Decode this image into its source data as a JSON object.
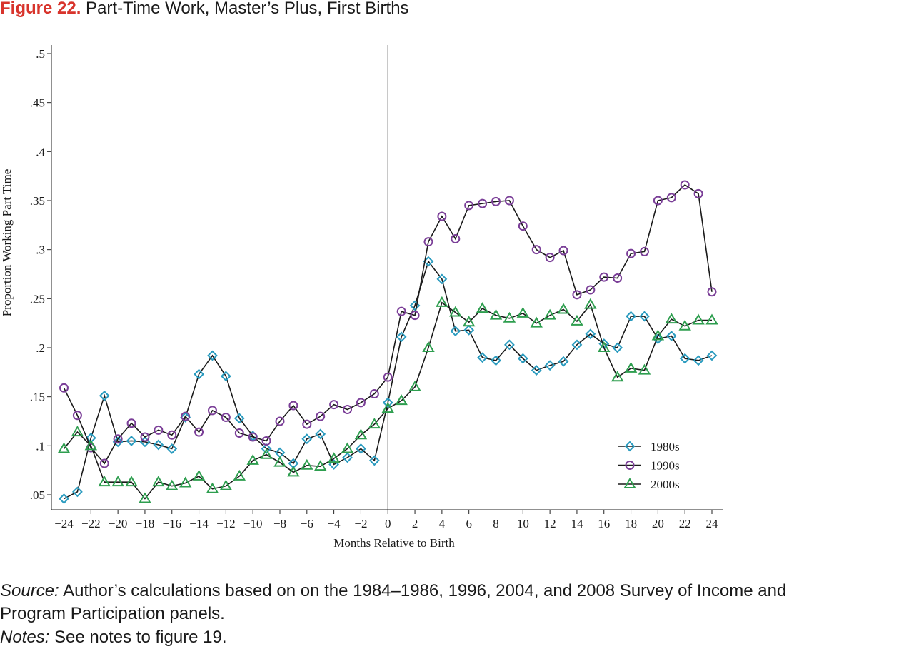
{
  "figure": {
    "number": "Figure 22.",
    "title": "Part-Time Work, Master’s Plus, First Births"
  },
  "footer": {
    "source_label": "Source:",
    "source_text": "Author’s calculations based on on the 1984–1986, 1996, 2004, and 2008 Survey of Income and",
    "source_text_2": "Program Participation panels.",
    "notes_label": "Notes:",
    "notes_text": "See notes to figure 19."
  },
  "chart_data": {
    "type": "line",
    "title": "",
    "xlabel": "Months Relative to Birth",
    "ylabel": "Proportion Working Part Time",
    "xlim": [
      -25,
      25
    ],
    "ylim": [
      0.04,
      0.51
    ],
    "x_ticks": [
      -24,
      -22,
      -20,
      -18,
      -16,
      -14,
      -12,
      -10,
      -8,
      -6,
      -4,
      -2,
      0,
      2,
      4,
      6,
      8,
      10,
      12,
      14,
      16,
      18,
      20,
      22,
      24
    ],
    "x_tick_labels": [
      "−24",
      "−22",
      "−20",
      "−18",
      "−16",
      "−14",
      "−12",
      "−10",
      "−8",
      "−6",
      "−4",
      "−2",
      "0",
      "2",
      "4",
      "6",
      "8",
      "10",
      "12",
      "14",
      "16",
      "18",
      "20",
      "22",
      "24"
    ],
    "y_ticks": [
      0.05,
      0.1,
      0.15,
      0.2,
      0.25,
      0.3,
      0.35,
      0.4,
      0.45,
      0.5
    ],
    "y_tick_labels": [
      ".05",
      ".1",
      ".15",
      ".2",
      ".25",
      ".3",
      ".35",
      ".4",
      ".45",
      ".5"
    ],
    "reference_line_x": 0,
    "grid": false,
    "legend_position": "bottom-right",
    "x": [
      -24,
      -23,
      -22,
      -21,
      -20,
      -19,
      -18,
      -17,
      -16,
      -15,
      -14,
      -13,
      -12,
      -11,
      -10,
      -9,
      -8,
      -7,
      -6,
      -5,
      -4,
      -3,
      -2,
      -1,
      0,
      1,
      2,
      3,
      4,
      5,
      6,
      7,
      8,
      9,
      10,
      11,
      12,
      13,
      14,
      15,
      16,
      17,
      18,
      19,
      20,
      21,
      22,
      23,
      24
    ],
    "series": [
      {
        "name": "1980s",
        "marker": "diamond",
        "color": "#2a9bbf",
        "values": [
          0.046,
          0.053,
          0.108,
          0.151,
          0.104,
          0.105,
          0.104,
          0.101,
          0.097,
          0.129,
          0.173,
          0.192,
          0.171,
          0.128,
          0.11,
          0.097,
          0.093,
          0.082,
          0.107,
          0.112,
          0.081,
          0.088,
          0.097,
          0.085,
          0.144,
          0.211,
          0.243,
          0.288,
          0.27,
          0.217,
          0.218,
          0.19,
          0.187,
          0.203,
          0.189,
          0.177,
          0.182,
          0.186,
          0.203,
          0.214,
          0.204,
          0.2,
          0.232,
          0.232,
          0.209,
          0.212,
          0.189,
          0.187,
          0.192
        ]
      },
      {
        "name": "1990s",
        "marker": "circle",
        "color": "#7b3f98",
        "values": [
          0.159,
          0.131,
          0.098,
          0.082,
          0.107,
          0.123,
          0.109,
          0.116,
          0.111,
          0.13,
          0.114,
          0.136,
          0.129,
          0.113,
          0.109,
          0.105,
          0.125,
          0.141,
          0.122,
          0.13,
          0.142,
          0.137,
          0.144,
          0.153,
          0.17,
          0.237,
          0.233,
          0.308,
          0.334,
          0.311,
          0.345,
          0.347,
          0.349,
          0.35,
          0.324,
          0.3,
          0.292,
          0.299,
          0.254,
          0.259,
          0.272,
          0.271,
          0.296,
          0.298,
          0.35,
          0.353,
          0.366,
          0.357,
          0.257
        ]
      },
      {
        "name": "2000s",
        "marker": "triangle",
        "color": "#2e9e4f",
        "values": [
          0.097,
          0.114,
          0.1,
          0.063,
          0.063,
          0.063,
          0.046,
          0.063,
          0.059,
          0.062,
          0.069,
          0.056,
          0.059,
          0.069,
          0.085,
          0.091,
          0.083,
          0.073,
          0.08,
          0.079,
          0.087,
          0.097,
          0.111,
          0.122,
          0.138,
          0.146,
          0.16,
          0.2,
          0.246,
          0.236,
          0.226,
          0.24,
          0.233,
          0.23,
          0.235,
          0.225,
          0.233,
          0.239,
          0.227,
          0.244,
          0.2,
          0.17,
          0.179,
          0.177,
          0.212,
          0.229,
          0.222,
          0.228,
          0.228
        ]
      }
    ]
  }
}
